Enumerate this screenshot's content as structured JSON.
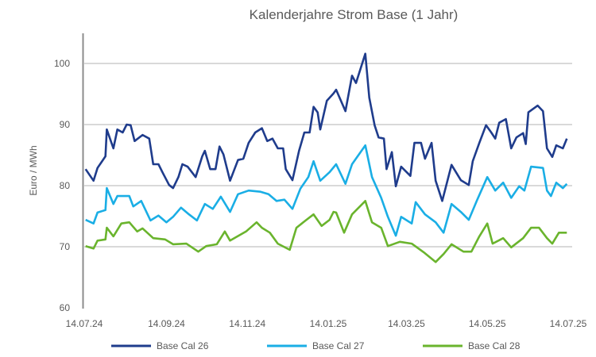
{
  "chart_data": {
    "type": "line",
    "title": "Kalenderjahre Strom Base (1 Jahr)",
    "xlabel": "",
    "ylabel": "Euro / MWh",
    "ylim": [
      60,
      105
    ],
    "yticks": [
      60,
      70,
      80,
      90,
      100
    ],
    "xlim_days": [
      0,
      365
    ],
    "xticks": [
      {
        "day": 0,
        "label": "14.07.24"
      },
      {
        "day": 62,
        "label": "14.09.24"
      },
      {
        "day": 123,
        "label": "14.11.24"
      },
      {
        "day": 184,
        "label": "14.01.25"
      },
      {
        "day": 243,
        "label": "14.03.25"
      },
      {
        "day": 304,
        "label": "14.05.25"
      },
      {
        "day": 365,
        "label": "14.07.25"
      }
    ],
    "grid": "horizontal",
    "legend": "bottom",
    "series": [
      {
        "name": "Base Cal 26",
        "color": "#1f3c8c",
        "days": [
          1,
          7,
          10,
          16,
          17,
          22,
          25,
          29,
          32,
          35,
          38,
          44,
          49,
          52,
          56,
          59,
          64,
          67,
          71,
          74,
          78,
          84,
          89,
          91,
          95,
          99,
          102,
          105,
          110,
          116,
          120,
          124,
          129,
          134,
          138,
          142,
          146,
          150,
          152,
          157,
          162,
          166,
          170,
          173,
          176,
          178,
          183,
          188,
          190,
          197,
          202,
          205,
          212,
          215,
          219,
          222,
          226,
          228,
          232,
          235,
          239,
          246,
          249,
          254,
          257,
          262,
          265,
          270,
          277,
          284,
          290,
          293,
          298,
          303,
          307,
          310,
          313,
          318,
          322,
          326,
          331,
          333,
          335,
          342,
          346,
          349,
          353,
          356,
          361,
          364
        ],
        "values": [
          82.7,
          80.8,
          82.9,
          84.8,
          89.2,
          86.1,
          89.2,
          88.7,
          90,
          89.9,
          87.3,
          88.3,
          87.7,
          83.5,
          83.5,
          82.2,
          80.1,
          79.6,
          81.4,
          83.5,
          83.1,
          81.4,
          84.8,
          85.7,
          82.7,
          82.7,
          86.4,
          85.1,
          80.8,
          84.2,
          84.4,
          87,
          88.7,
          89.4,
          87.3,
          87.7,
          86.1,
          86.1,
          82.7,
          80.9,
          85.7,
          88.7,
          88.7,
          92.9,
          92,
          89.2,
          93.9,
          95.1,
          95.7,
          92.2,
          98,
          96.8,
          101.6,
          94.4,
          89.9,
          87.9,
          87.7,
          82.7,
          85.5,
          79.9,
          83.1,
          81.6,
          87,
          87,
          84.4,
          87,
          80.8,
          77.5,
          83.4,
          80.9,
          80.1,
          84,
          87,
          89.9,
          88.7,
          87.7,
          90.3,
          90.9,
          86.1,
          87.9,
          88.6,
          86.8,
          92,
          93.1,
          92.2,
          86.1,
          84.7,
          86.6,
          86.1,
          87.7
        ]
      },
      {
        "name": "Base Cal 27",
        "color": "#1aaee5",
        "days": [
          1,
          7,
          10,
          16,
          17,
          22,
          25,
          34,
          37,
          43,
          50,
          56,
          62,
          67,
          73,
          79,
          85,
          91,
          97,
          103,
          110,
          116,
          124,
          133,
          139,
          145,
          151,
          157,
          163,
          169,
          173,
          178,
          185,
          190,
          197,
          202,
          212,
          217,
          224,
          229,
          235,
          239,
          247,
          250,
          257,
          265,
          271,
          277,
          284,
          290,
          296,
          304,
          310,
          316,
          322,
          328,
          332,
          337,
          346,
          349,
          352,
          356,
          361,
          364
        ],
        "values": [
          74.4,
          73.8,
          75.6,
          76,
          79.6,
          77,
          78.3,
          78.3,
          76.6,
          77.5,
          74.3,
          75.1,
          74,
          74.9,
          76.4,
          75.3,
          74.3,
          77,
          76.2,
          78.2,
          75.7,
          78.6,
          79.2,
          79,
          78.6,
          77.5,
          77.7,
          76.2,
          79.5,
          81.4,
          84,
          80.8,
          82.2,
          83.5,
          80.3,
          83.5,
          86.6,
          81.4,
          78,
          74.9,
          71.8,
          74.9,
          73.8,
          77.3,
          75.3,
          74,
          72.3,
          77,
          75.7,
          74.4,
          77.5,
          81.4,
          79.2,
          80.5,
          78,
          79.9,
          79.2,
          83.1,
          82.9,
          79.2,
          78.3,
          80.5,
          79.6,
          80.3
        ]
      },
      {
        "name": "Base Cal 28",
        "color": "#6ab42d",
        "days": [
          1,
          7,
          10,
          16,
          17,
          22,
          28,
          34,
          40,
          44,
          52,
          61,
          67,
          77,
          86,
          92,
          100,
          106,
          110,
          122,
          130,
          134,
          140,
          146,
          155,
          160,
          167,
          173,
          179,
          185,
          188,
          190,
          196,
          202,
          212,
          217,
          224,
          229,
          238,
          247,
          256,
          265,
          271,
          277,
          286,
          292,
          298,
          304,
          308,
          316,
          322,
          331,
          337,
          343,
          349,
          353,
          358,
          364
        ],
        "values": [
          70.1,
          69.7,
          71,
          71.2,
          73.1,
          71.7,
          73.8,
          74,
          72.5,
          73,
          71.4,
          71.2,
          70.4,
          70.5,
          69.2,
          70.1,
          70.4,
          72.5,
          71,
          72.5,
          74,
          73.1,
          72.3,
          70.5,
          69.5,
          73.1,
          74.3,
          75.3,
          73.4,
          74.4,
          75.7,
          75.6,
          72.3,
          75.3,
          77.5,
          74,
          73.1,
          70.1,
          70.8,
          70.5,
          69.1,
          67.5,
          68.8,
          70.4,
          69.2,
          69.2,
          71.7,
          73.8,
          70.5,
          71.4,
          69.9,
          71.4,
          73.1,
          73.1,
          71.4,
          70.5,
          72.3,
          72.3
        ]
      }
    ]
  }
}
